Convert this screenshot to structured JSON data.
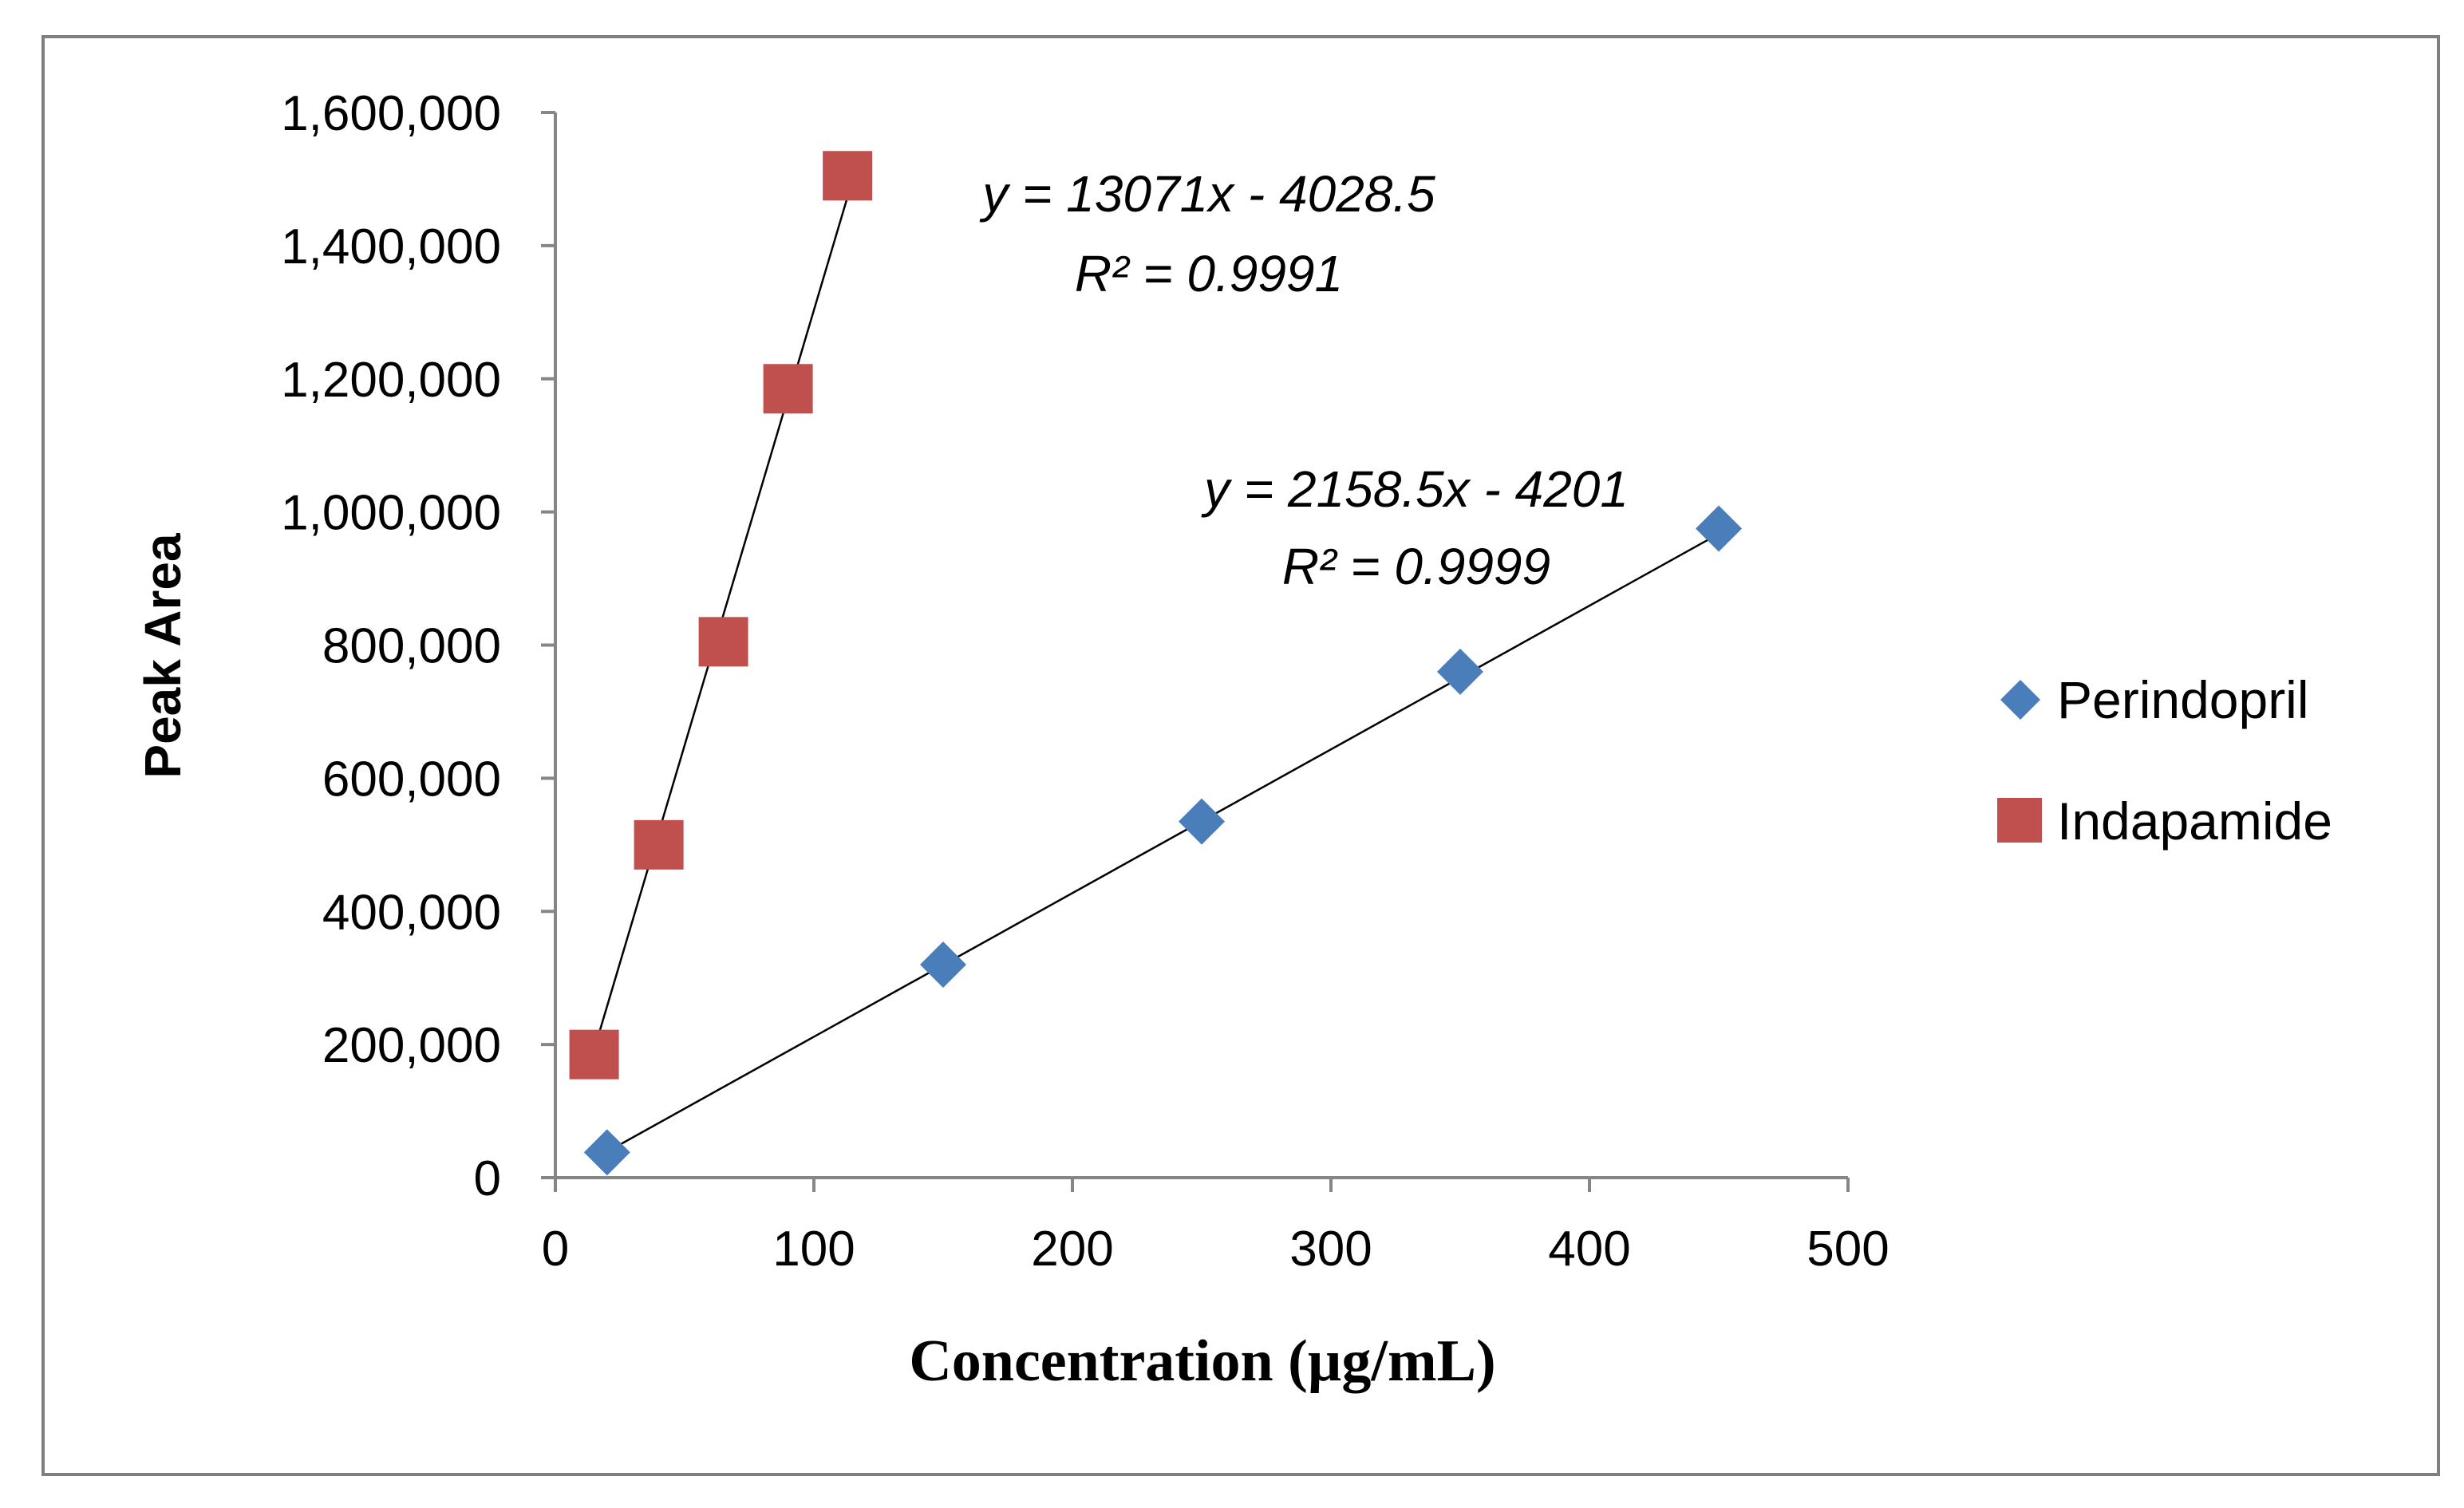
{
  "chart_data": {
    "type": "scatter",
    "title": "",
    "xlabel": "Concentration (µg/mL)",
    "ylabel": "Peak Area",
    "xlim": [
      0,
      500
    ],
    "ylim": [
      0,
      1600000
    ],
    "x_ticks": [
      0,
      100,
      200,
      300,
      400,
      500
    ],
    "y_ticks": [
      0,
      200000,
      400000,
      600000,
      800000,
      1000000,
      1200000,
      1400000,
      1600000
    ],
    "x_tick_labels": [
      "0",
      "100",
      "200",
      "300",
      "400",
      "500"
    ],
    "y_tick_labels": [
      "0",
      "200,000",
      "400,000",
      "600,000",
      "800,000",
      "1,000,000",
      "1,200,000",
      "1,400,000",
      "1,600,000"
    ],
    "grid": false,
    "legend_position": "right",
    "series": [
      {
        "name": "Perindopril",
        "marker": "diamond",
        "color": "#4a7ebb",
        "x": [
          20,
          150,
          250,
          350,
          450
        ],
        "y": [
          38000,
          320000,
          535000,
          760000,
          975000
        ],
        "trendline": {
          "slope": 2158.5,
          "intercept": -4201,
          "x_range": [
            20,
            450
          ]
        },
        "equation": "y = 2158.5x - 4201",
        "r_squared": "R² = 0.9999"
      },
      {
        "name": "Indapamide",
        "marker": "square",
        "color": "#c0504d",
        "x": [
          15,
          40,
          65,
          90,
          113
        ],
        "y": [
          185000,
          500000,
          805000,
          1185000,
          1505000
        ],
        "trendline": {
          "slope": 13071,
          "intercept": -4028.5,
          "x_range": [
            15,
            113
          ]
        },
        "equation": "y = 13071x - 4028.5",
        "r_squared": "R² = 0.9991"
      }
    ]
  }
}
